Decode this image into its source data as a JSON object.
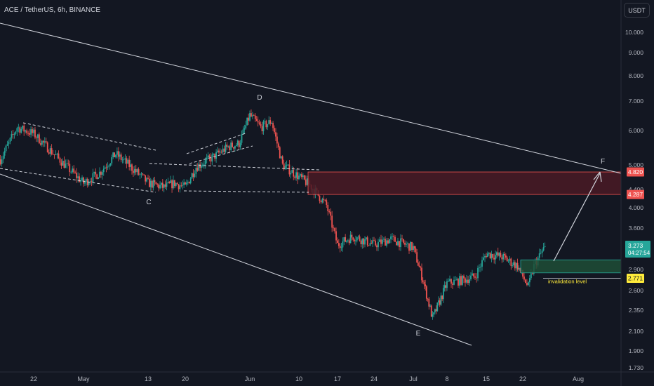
{
  "header": {
    "title": "ACE / TetherUS, 6h, BINANCE"
  },
  "currency_button": {
    "label": "USDT"
  },
  "colors": {
    "background": "#131722",
    "up": "#26a69a",
    "down": "#ef5350",
    "resistance_zone": "#4a1a24",
    "support_zone": "#1e4d36",
    "price_label": "#26a69a",
    "invalidation_label": "#ffeb3b"
  },
  "chart_data": {
    "type": "candlestick",
    "title": "ACE / TetherUS, 6h, BINANCE",
    "scale": "log",
    "ylim": [
      1.73,
      11.0
    ],
    "y_ticks": [
      "10.000",
      "9.000",
      "8.000",
      "7.000",
      "6.000",
      "5.000",
      "4.400",
      "4.000",
      "3.600",
      "2.900",
      "2.600",
      "2.350",
      "2.100",
      "1.900",
      "1.730"
    ],
    "x_ticks": [
      "22",
      "May",
      "13",
      "20",
      "Jun",
      "10",
      "17",
      "24",
      "Jul",
      "8",
      "15",
      "22",
      "Aug"
    ],
    "price_series": [
      {
        "date": "Apr 16",
        "price": 5.15
      },
      {
        "date": "Apr 19",
        "price": 6.1
      },
      {
        "date": "Apr 22",
        "price": 5.9
      },
      {
        "date": "Apr 25",
        "price": 5.4
      },
      {
        "date": "Apr 28",
        "price": 4.95
      },
      {
        "date": "May 1",
        "price": 4.55
      },
      {
        "date": "May 4",
        "price": 4.8
      },
      {
        "date": "May 7",
        "price": 5.3
      },
      {
        "date": "May 9",
        "price": 5.05
      },
      {
        "date": "May 11",
        "price": 4.8
      },
      {
        "date": "May 13",
        "price": 4.55
      },
      {
        "date": "May 16",
        "price": 4.45
      },
      {
        "date": "May 18",
        "price": 4.55
      },
      {
        "date": "May 20",
        "price": 4.45
      },
      {
        "date": "May 22",
        "price": 4.95
      },
      {
        "date": "May 25",
        "price": 5.2
      },
      {
        "date": "May 28",
        "price": 5.5
      },
      {
        "date": "May 30",
        "price": 5.6
      },
      {
        "date": "Jun 1",
        "price": 6.5
      },
      {
        "date": "Jun 3",
        "price": 6.1
      },
      {
        "date": "Jun 5",
        "price": 6.3
      },
      {
        "date": "Jun 7",
        "price": 5.0
      },
      {
        "date": "Jun 10",
        "price": 4.7
      },
      {
        "date": "Jun 12",
        "price": 4.5
      },
      {
        "date": "Jun 15",
        "price": 4.05
      },
      {
        "date": "Jun 17",
        "price": 3.3
      },
      {
        "date": "Jun 20",
        "price": 3.45
      },
      {
        "date": "Jun 24",
        "price": 3.3
      },
      {
        "date": "Jun 27",
        "price": 3.4
      },
      {
        "date": "Jul 1",
        "price": 3.25
      },
      {
        "date": "Jul 3",
        "price": 2.75
      },
      {
        "date": "Jul 5",
        "price": 2.25
      },
      {
        "date": "Jul 8",
        "price": 2.7
      },
      {
        "date": "Jul 11",
        "price": 2.75
      },
      {
        "date": "Jul 13",
        "price": 2.8
      },
      {
        "date": "Jul 15",
        "price": 3.15
      },
      {
        "date": "Jul 18",
        "price": 3.1
      },
      {
        "date": "Jul 21",
        "price": 2.95
      },
      {
        "date": "Jul 23",
        "price": 2.65
      },
      {
        "date": "Jul 24",
        "price": 2.95
      },
      {
        "date": "Jul 26",
        "price": 3.273
      }
    ],
    "zones": [
      {
        "name": "resistance",
        "from": 4.287,
        "to": 4.82
      },
      {
        "name": "support",
        "from": 2.85,
        "to": 3.05
      }
    ],
    "point_labels": [
      {
        "label": "C",
        "date": "May 15",
        "price": 4.35
      },
      {
        "label": "D",
        "date": "Jun 2",
        "price": 6.95
      },
      {
        "label": "E",
        "date": "Jul 4",
        "price": 2.12
      },
      {
        "label": "F",
        "date": "Aug 1",
        "price": 5.0
      }
    ],
    "price_labels": [
      {
        "text": "4.820",
        "price": 4.82,
        "color": "#ef5350"
      },
      {
        "text": "4.287",
        "price": 4.287,
        "color": "#ef5350"
      },
      {
        "text": "2.771",
        "price": 2.771,
        "color": "#ffeb3b"
      }
    ],
    "current_price": {
      "text": "3.273",
      "countdown": "04:27:54",
      "price": 3.273
    },
    "annotations": [
      {
        "text": "invalidation level",
        "price": 2.771
      }
    ]
  }
}
